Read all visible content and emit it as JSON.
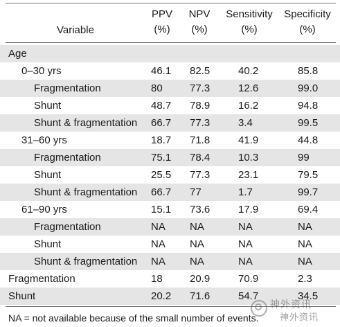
{
  "header": {
    "variable": "Variable",
    "ppv_line1": "PPV",
    "ppv_line2": "(%)",
    "npv_line1": "NPV",
    "npv_line2": "(%)",
    "sensitivity_line1": "Sensitivity",
    "sensitivity_line2": "(%)",
    "specificity_line1": "Specificity",
    "specificity_line2": "(%)"
  },
  "rows": [
    {
      "label": "Age",
      "ppv": "",
      "npv": "",
      "sensitivity": "",
      "specificity": ""
    },
    {
      "label": "0–30 yrs",
      "ppv": "46.1",
      "npv": "82.5",
      "sensitivity": "40.2",
      "specificity": "85.8"
    },
    {
      "label": "Fragmentation",
      "ppv": "80",
      "npv": "77.3",
      "sensitivity": "12.6",
      "specificity": "99.0"
    },
    {
      "label": "Shunt",
      "ppv": "48.7",
      "npv": "78.9",
      "sensitivity": "16.2",
      "specificity": "94.8"
    },
    {
      "label": "Shunt & fragmentation",
      "ppv": "66.7",
      "npv": "77.3",
      "sensitivity": "3.4",
      "specificity": "99.5"
    },
    {
      "label": "31–60 yrs",
      "ppv": "18.7",
      "npv": "71.8",
      "sensitivity": "41.9",
      "specificity": "44.8"
    },
    {
      "label": "Fragmentation",
      "ppv": "75.1",
      "npv": "78.4",
      "sensitivity": "10.3",
      "specificity": "99"
    },
    {
      "label": "Shunt",
      "ppv": "25.5",
      "npv": "77.3",
      "sensitivity": "23.1",
      "specificity": "79.5"
    },
    {
      "label": "Shunt & fragmentation",
      "ppv": "66.7",
      "npv": "77",
      "sensitivity": "1.7",
      "specificity": "99.7"
    },
    {
      "label": "61–90 yrs",
      "ppv": "15.1",
      "npv": "73.6",
      "sensitivity": "17.9",
      "specificity": "69.4"
    },
    {
      "label": "Fragmentation",
      "ppv": "NA",
      "npv": "NA",
      "sensitivity": "NA",
      "specificity": "NA"
    },
    {
      "label": "Shunt",
      "ppv": "NA",
      "npv": "NA",
      "sensitivity": "NA",
      "specificity": "NA"
    },
    {
      "label": "Shunt & fragmentation",
      "ppv": "NA",
      "npv": "NA",
      "sensitivity": "NA",
      "specificity": "NA"
    },
    {
      "label": "Fragmentation",
      "ppv": "18",
      "npv": "20.9",
      "sensitivity": "70.9",
      "specificity": "2.3"
    },
    {
      "label": "Shunt",
      "ppv": "20.2",
      "npv": "71.6",
      "sensitivity": "54.7",
      "specificity": "34.5"
    }
  ],
  "footnote": "NA = not available because of the small number of events.",
  "watermark": {
    "line1": "神外资讯",
    "line2": "神外资讯"
  },
  "colors": {
    "shaded_row": "#e5e5e5",
    "rule": "#6f6f6f",
    "text": "#1b1b1b"
  }
}
